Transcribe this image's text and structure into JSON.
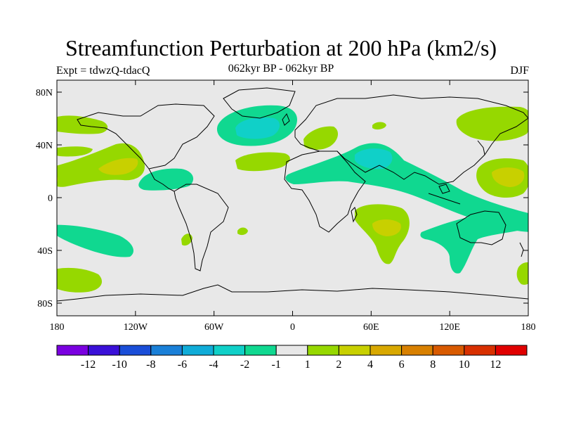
{
  "title": "Streamfunction Perturbation at 200 hPa (km2/s)",
  "subtitle_left": "Expt = tdwzQ-tdacQ",
  "subtitle_center": "062kyr BP - 062kyr BP",
  "subtitle_right": "DJF",
  "lat_ticks": [
    "80N",
    "40N",
    "0",
    "40S",
    "80S"
  ],
  "lon_ticks": [
    "180",
    "120W",
    "60W",
    "0",
    "60E",
    "120E",
    "180"
  ],
  "colorbar": {
    "labels": [
      "-12",
      "-10",
      "-8",
      "-6",
      "-4",
      "-2",
      "-1",
      "1",
      "2",
      "4",
      "6",
      "8",
      "10",
      "12"
    ],
    "colors": [
      "#7a00e0",
      "#3a10d8",
      "#1a4ed8",
      "#1a80d8",
      "#10acd8",
      "#10d0c8",
      "#10d890",
      "#e8e8e8",
      "#96d800",
      "#c8d000",
      "#d8a800",
      "#d88000",
      "#d85a00",
      "#d83000",
      "#e00000"
    ]
  },
  "colors": {
    "background": "#e8e8e8",
    "neg_light": "#10d890",
    "neg_mid": "#10d0c8",
    "pos_light": "#96d800",
    "pos_mid": "#c8d000"
  }
}
